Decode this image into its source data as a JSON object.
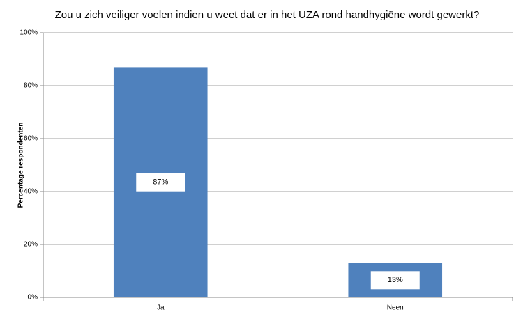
{
  "chart_data": {
    "type": "bar",
    "title": "Zou u zich veiliger voelen indien u weet dat er in het UZA rond handhygiëne wordt gewerkt?",
    "y_label": "Percentage respondenten",
    "categories": [
      "Ja",
      "Neen"
    ],
    "values": [
      87,
      13
    ],
    "value_labels": [
      "87%",
      "13%"
    ],
    "color": "#4f81bd",
    "ylim": [
      0,
      100
    ],
    "yticks": [
      {
        "value": 0,
        "label": "0%"
      },
      {
        "value": 20,
        "label": "20%"
      },
      {
        "value": 40,
        "label": "40%"
      },
      {
        "value": 60,
        "label": "60%"
      },
      {
        "value": 80,
        "label": "80%"
      },
      {
        "value": 100,
        "label": "100%"
      }
    ],
    "grid": true
  }
}
